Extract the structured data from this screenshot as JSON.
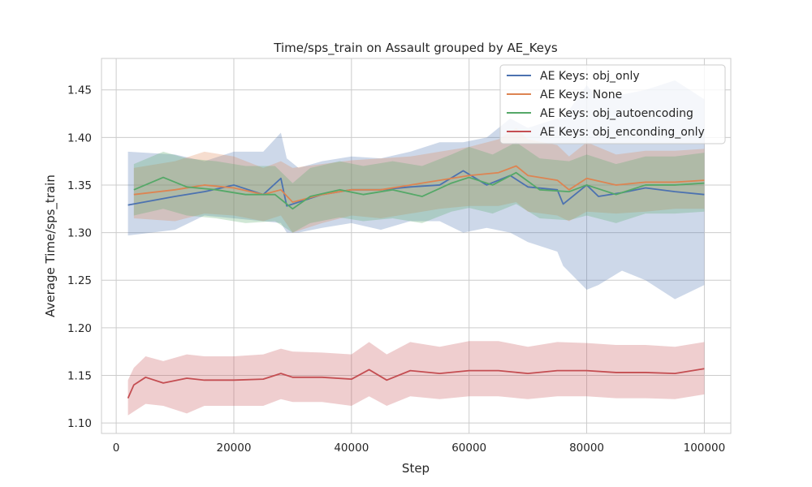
{
  "chart_data": {
    "type": "line",
    "title": "Time/sps_train on Assault grouped by AE_Keys",
    "xlabel": "Step",
    "ylabel": "Average Time/sps_train",
    "xlim": [
      -2500,
      104500
    ],
    "ylim": [
      1.089,
      1.483
    ],
    "xticks": [
      0,
      20000,
      40000,
      60000,
      80000,
      100000
    ],
    "xtick_labels": [
      "0",
      "20000",
      "40000",
      "60000",
      "80000",
      "100000"
    ],
    "yticks": [
      1.1,
      1.15,
      1.2,
      1.25,
      1.3,
      1.35,
      1.4,
      1.45
    ],
    "ytick_labels": [
      "1.10",
      "1.15",
      "1.20",
      "1.25",
      "1.30",
      "1.35",
      "1.40",
      "1.45"
    ],
    "grid": true,
    "legend_position": "top-right",
    "series": [
      {
        "name": "AE Keys: obj_only",
        "color": "#4c72b0",
        "x": [
          2000,
          10000,
          15000,
          20000,
          25000,
          28000,
          29000,
          31000,
          35000,
          40000,
          45000,
          50000,
          55000,
          59000,
          63000,
          67000,
          70000,
          75000,
          76000,
          80000,
          82000,
          86000,
          90000,
          95000,
          100000
        ],
        "y": [
          1.329,
          1.338,
          1.343,
          1.35,
          1.34,
          1.357,
          1.328,
          1.332,
          1.34,
          1.345,
          1.345,
          1.348,
          1.35,
          1.365,
          1.35,
          1.36,
          1.348,
          1.345,
          1.33,
          1.35,
          1.338,
          1.342,
          1.347,
          1.343,
          1.34
        ],
        "lower": [
          1.297,
          1.303,
          1.318,
          1.315,
          1.312,
          1.31,
          1.3,
          1.3,
          1.305,
          1.31,
          1.303,
          1.312,
          1.312,
          1.3,
          1.305,
          1.3,
          1.29,
          1.28,
          1.265,
          1.24,
          1.245,
          1.26,
          1.25,
          1.23,
          1.245
        ],
        "upper": [
          1.385,
          1.382,
          1.375,
          1.385,
          1.385,
          1.405,
          1.378,
          1.368,
          1.375,
          1.38,
          1.378,
          1.385,
          1.395,
          1.395,
          1.4,
          1.42,
          1.41,
          1.42,
          1.42,
          1.455,
          1.44,
          1.445,
          1.45,
          1.46,
          1.44
        ]
      },
      {
        "name": "AE Keys: None",
        "color": "#dd8452",
        "x": [
          3000,
          10000,
          15000,
          20000,
          25000,
          28000,
          30000,
          35000,
          40000,
          45000,
          50000,
          55000,
          60000,
          65000,
          68000,
          70000,
          75000,
          77000,
          80000,
          85000,
          90000,
          95000,
          100000
        ],
        "y": [
          1.34,
          1.345,
          1.35,
          1.347,
          1.34,
          1.345,
          1.332,
          1.34,
          1.345,
          1.345,
          1.35,
          1.355,
          1.36,
          1.363,
          1.37,
          1.36,
          1.355,
          1.345,
          1.357,
          1.35,
          1.353,
          1.353,
          1.355
        ],
        "lower": [
          1.315,
          1.312,
          1.32,
          1.318,
          1.312,
          1.318,
          1.3,
          1.31,
          1.318,
          1.315,
          1.32,
          1.325,
          1.328,
          1.328,
          1.332,
          1.322,
          1.318,
          1.312,
          1.322,
          1.32,
          1.322,
          1.325,
          1.325
        ],
        "upper": [
          1.368,
          1.375,
          1.385,
          1.38,
          1.368,
          1.375,
          1.368,
          1.372,
          1.376,
          1.378,
          1.38,
          1.385,
          1.39,
          1.398,
          1.41,
          1.398,
          1.392,
          1.38,
          1.395,
          1.382,
          1.386,
          1.386,
          1.388
        ]
      },
      {
        "name": "AE Keys: obj_autoencoding",
        "color": "#55a868",
        "x": [
          3000,
          8000,
          12000,
          17000,
          22000,
          27000,
          30000,
          33000,
          38000,
          42000,
          47000,
          52000,
          57000,
          60000,
          64000,
          68000,
          72000,
          77000,
          80000,
          85000,
          90000,
          95000,
          100000
        ],
        "y": [
          1.345,
          1.358,
          1.348,
          1.345,
          1.34,
          1.34,
          1.325,
          1.338,
          1.345,
          1.34,
          1.345,
          1.338,
          1.352,
          1.358,
          1.35,
          1.363,
          1.345,
          1.343,
          1.35,
          1.34,
          1.35,
          1.35,
          1.352
        ],
        "lower": [
          1.318,
          1.325,
          1.318,
          1.315,
          1.31,
          1.312,
          1.3,
          1.31,
          1.316,
          1.312,
          1.315,
          1.31,
          1.322,
          1.326,
          1.32,
          1.33,
          1.315,
          1.313,
          1.318,
          1.31,
          1.32,
          1.32,
          1.322
        ],
        "upper": [
          1.372,
          1.385,
          1.378,
          1.375,
          1.37,
          1.37,
          1.352,
          1.368,
          1.375,
          1.37,
          1.375,
          1.37,
          1.382,
          1.39,
          1.382,
          1.395,
          1.378,
          1.375,
          1.382,
          1.372,
          1.38,
          1.38,
          1.384
        ]
      },
      {
        "name": "AE Keys: obj_enconding_only",
        "color": "#c44e52",
        "x": [
          2000,
          3000,
          5000,
          8000,
          12000,
          15000,
          20000,
          25000,
          28000,
          30000,
          35000,
          40000,
          43000,
          46000,
          50000,
          55000,
          60000,
          65000,
          70000,
          75000,
          80000,
          85000,
          90000,
          95000,
          100000
        ],
        "y": [
          1.126,
          1.14,
          1.148,
          1.142,
          1.147,
          1.145,
          1.145,
          1.146,
          1.152,
          1.148,
          1.148,
          1.146,
          1.156,
          1.145,
          1.155,
          1.152,
          1.155,
          1.155,
          1.152,
          1.155,
          1.155,
          1.153,
          1.153,
          1.152,
          1.157
        ],
        "lower": [
          1.108,
          1.112,
          1.12,
          1.118,
          1.11,
          1.118,
          1.118,
          1.118,
          1.125,
          1.122,
          1.122,
          1.118,
          1.128,
          1.118,
          1.128,
          1.125,
          1.128,
          1.128,
          1.125,
          1.128,
          1.128,
          1.126,
          1.126,
          1.125,
          1.13
        ],
        "upper": [
          1.145,
          1.158,
          1.17,
          1.165,
          1.172,
          1.17,
          1.17,
          1.172,
          1.178,
          1.175,
          1.174,
          1.172,
          1.185,
          1.172,
          1.185,
          1.18,
          1.186,
          1.186,
          1.18,
          1.185,
          1.184,
          1.182,
          1.182,
          1.18,
          1.185
        ]
      }
    ]
  }
}
